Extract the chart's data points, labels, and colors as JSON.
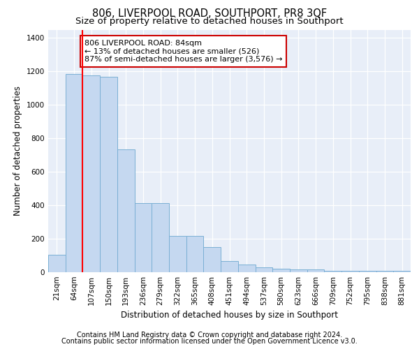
{
  "title": "806, LIVERPOOL ROAD, SOUTHPORT, PR8 3QF",
  "subtitle": "Size of property relative to detached houses in Southport",
  "xlabel": "Distribution of detached houses by size in Southport",
  "ylabel": "Number of detached properties",
  "categories": [
    "21sqm",
    "64sqm",
    "107sqm",
    "150sqm",
    "193sqm",
    "236sqm",
    "279sqm",
    "322sqm",
    "365sqm",
    "408sqm",
    "451sqm",
    "494sqm",
    "537sqm",
    "580sqm",
    "623sqm",
    "666sqm",
    "709sqm",
    "752sqm",
    "795sqm",
    "838sqm",
    "881sqm"
  ],
  "bar_values": [
    105,
    1185,
    1175,
    1170,
    735,
    415,
    415,
    215,
    215,
    150,
    65,
    45,
    30,
    20,
    15,
    15,
    10,
    10,
    10,
    10,
    10
  ],
  "bar_color": "#c5d8f0",
  "bar_edge_color": "#7aafd4",
  "red_line_x": 1.5,
  "annotation_text": "806 LIVERPOOL ROAD: 84sqm\n← 13% of detached houses are smaller (526)\n87% of semi-detached houses are larger (3,576) →",
  "annotation_box_color": "#ffffff",
  "annotation_box_edge_color": "#cc0000",
  "ylim": [
    0,
    1450
  ],
  "yticks": [
    0,
    200,
    400,
    600,
    800,
    1000,
    1200,
    1400
  ],
  "footer_line1": "Contains HM Land Registry data © Crown copyright and database right 2024.",
  "footer_line2": "Contains public sector information licensed under the Open Government Licence v3.0.",
  "plot_background": "#e8eef8",
  "grid_color": "#ffffff",
  "title_fontsize": 10.5,
  "subtitle_fontsize": 9.5,
  "axis_label_fontsize": 8.5,
  "tick_fontsize": 7.5,
  "footer_fontsize": 7.0,
  "annotation_fontsize": 8
}
